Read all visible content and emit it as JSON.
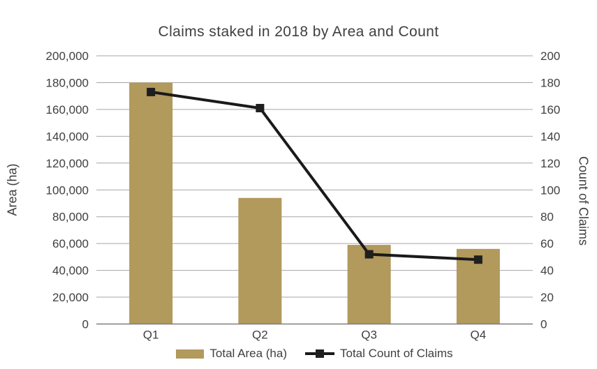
{
  "chart_data": {
    "type": "combo",
    "title": "Claims staked in 2018 by Area and Count",
    "categories": [
      "Q1",
      "Q2",
      "Q3",
      "Q4"
    ],
    "series": [
      {
        "name": "Total Area (ha)",
        "chart": "bar",
        "axis": "left",
        "color": "#b2995c",
        "values": [
          180000,
          94000,
          59000,
          56000
        ]
      },
      {
        "name": "Total Count of Claims",
        "chart": "line",
        "axis": "right",
        "color": "#1a1a1a",
        "marker": "square",
        "marker_color": "#1f1f1f",
        "values": [
          173,
          161,
          52,
          48
        ]
      }
    ],
    "left_axis": {
      "label": "Area (ha)",
      "min": 0,
      "max": 200000,
      "step": 20000
    },
    "right_axis": {
      "label": "Count of Claims",
      "min": 0,
      "max": 200,
      "step": 20
    },
    "grid": true,
    "legend_position": "bottom"
  },
  "colors": {
    "grid": "#a6a6a6",
    "axis_line": "#7f7f7f",
    "text": "#3f3f3f",
    "background": "#ffffff"
  }
}
